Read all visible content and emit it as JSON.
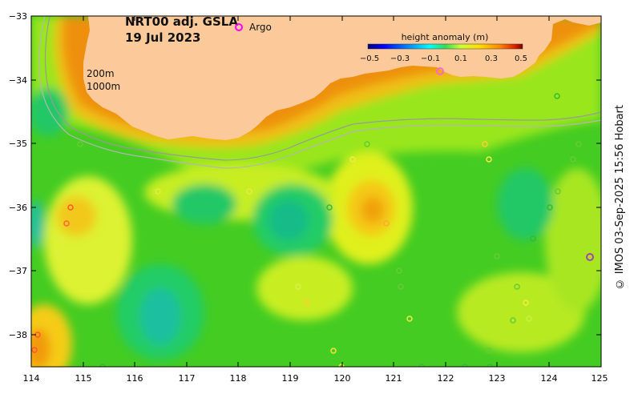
{
  "title": {
    "line1": "NRT00 adj. GSLA",
    "line2": "19 Jul 2023"
  },
  "legend": {
    "argo_label": "Argo",
    "argo_color": "#ff00ff"
  },
  "colorbar": {
    "title": "height anomaly (m)",
    "ticks": [
      "−0.5",
      "−0.3",
      "−0.1",
      "0.1",
      "0.3",
      "0.5"
    ],
    "colors": [
      "#00007f",
      "#0000ff",
      "#007fff",
      "#00ffff",
      "#00e0a0",
      "#00cc33",
      "#66dd00",
      "#ccff33",
      "#ffdd00",
      "#ff9900",
      "#ee5500",
      "#cc0000",
      "#7f0000"
    ]
  },
  "contours": {
    "label_200m": "200m",
    "label_1000m": "1000m"
  },
  "axes": {
    "x_ticks": [
      "114",
      "115",
      "116",
      "117",
      "118",
      "119",
      "120",
      "121",
      "122",
      "123",
      "124",
      "125"
    ],
    "y_ticks": [
      "−33",
      "−34",
      "−35",
      "−36",
      "−37",
      "−38"
    ]
  },
  "credit": "© IMOS 03-Sep-2025 15:56 Hobart",
  "colors": {
    "land": "#fcc99a",
    "background_field": "#33cc22"
  }
}
